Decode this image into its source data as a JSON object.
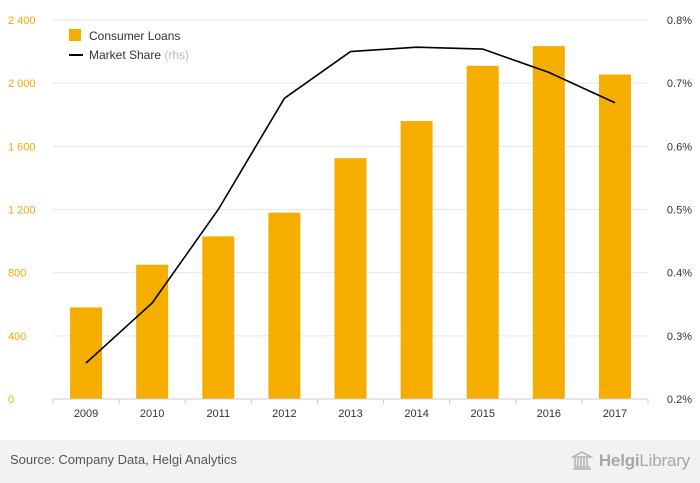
{
  "chart_data": {
    "type": "bar",
    "categories": [
      "2009",
      "2010",
      "2011",
      "2012",
      "2013",
      "2014",
      "2015",
      "2016",
      "2017"
    ],
    "series": [
      {
        "name": "Consumer Loans",
        "type": "bar",
        "axis": "left",
        "values": [
          580,
          850,
          1030,
          1180,
          1525,
          1760,
          2110,
          2235,
          2055
        ]
      },
      {
        "name": "Market Share",
        "type": "line",
        "axis": "right",
        "values": [
          0.257,
          0.352,
          0.5,
          0.676,
          0.75,
          0.757,
          0.754,
          0.717,
          0.669
        ]
      }
    ],
    "ylim": [
      0,
      2400
    ],
    "y_ticks": [
      "0",
      "400",
      "800",
      "1 200",
      "1 600",
      "2 000",
      "2 400"
    ],
    "y2lim": [
      0.2,
      0.8
    ],
    "y2_ticks": [
      "0.2%",
      "0.3%",
      "0.4%",
      "0.5%",
      "0.6%",
      "0.7%",
      "0.8%"
    ],
    "legend": {
      "position": "top-left",
      "items": [
        {
          "label": "Consumer Loans",
          "suffix": ""
        },
        {
          "label": "Market Share",
          "suffix": "(rhs)"
        }
      ]
    },
    "grid": true,
    "colors": {
      "bar": "#f5ae00",
      "line": "#000000",
      "left_axis_text": "#f5a800",
      "grid": "#e6e6e6"
    }
  },
  "footer": {
    "source": "Source: Company Data, Helgi Analytics",
    "logo_word1": "Helgi",
    "logo_word2": "Library"
  }
}
